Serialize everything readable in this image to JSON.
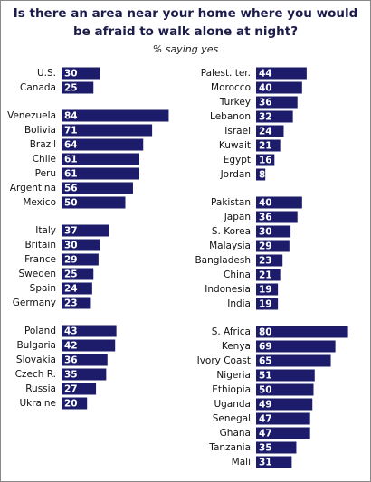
{
  "chart_data": {
    "type": "bar",
    "title": [
      "Is there an area near your home where you would",
      "be afraid to walk alone at night?"
    ],
    "subtitle": "% saying yes",
    "color": "#1c1c6b",
    "panels": [
      {
        "groups": [
          {
            "categories": [
              "U.S.",
              "Canada"
            ],
            "values": [
              30,
              25
            ]
          },
          {
            "categories": [
              "Venezuela",
              "Bolivia",
              "Brazil",
              "Chile",
              "Peru",
              "Argentina",
              "Mexico"
            ],
            "values": [
              84,
              71,
              64,
              61,
              61,
              56,
              50
            ]
          },
          {
            "categories": [
              "Italy",
              "Britain",
              "France",
              "Sweden",
              "Spain",
              "Germany"
            ],
            "values": [
              37,
              30,
              29,
              25,
              24,
              23
            ]
          },
          {
            "categories": [
              "Poland",
              "Bulgaria",
              "Slovakia",
              "Czech R.",
              "Russia",
              "Ukraine"
            ],
            "values": [
              43,
              42,
              36,
              35,
              27,
              20
            ]
          }
        ]
      },
      {
        "groups": [
          {
            "categories": [
              "Palest. ter.",
              "Morocco",
              "Turkey",
              "Lebanon",
              "Israel",
              "Kuwait",
              "Egypt",
              "Jordan"
            ],
            "values": [
              44,
              40,
              36,
              32,
              24,
              21,
              16,
              8
            ]
          },
          {
            "categories": [
              "Pakistan",
              "Japan",
              "S. Korea",
              "Malaysia",
              "Bangladesh",
              "China",
              "Indonesia",
              "India"
            ],
            "values": [
              40,
              36,
              30,
              29,
              23,
              21,
              19,
              19
            ]
          },
          {
            "categories": [
              "S. Africa",
              "Kenya",
              "Ivory Coast",
              "Nigeria",
              "Ethiopia",
              "Uganda",
              "Senegal",
              "Ghana",
              "Tanzania",
              "Mali"
            ],
            "values": [
              80,
              69,
              65,
              51,
              50,
              49,
              47,
              47,
              35,
              31
            ]
          }
        ]
      }
    ]
  }
}
